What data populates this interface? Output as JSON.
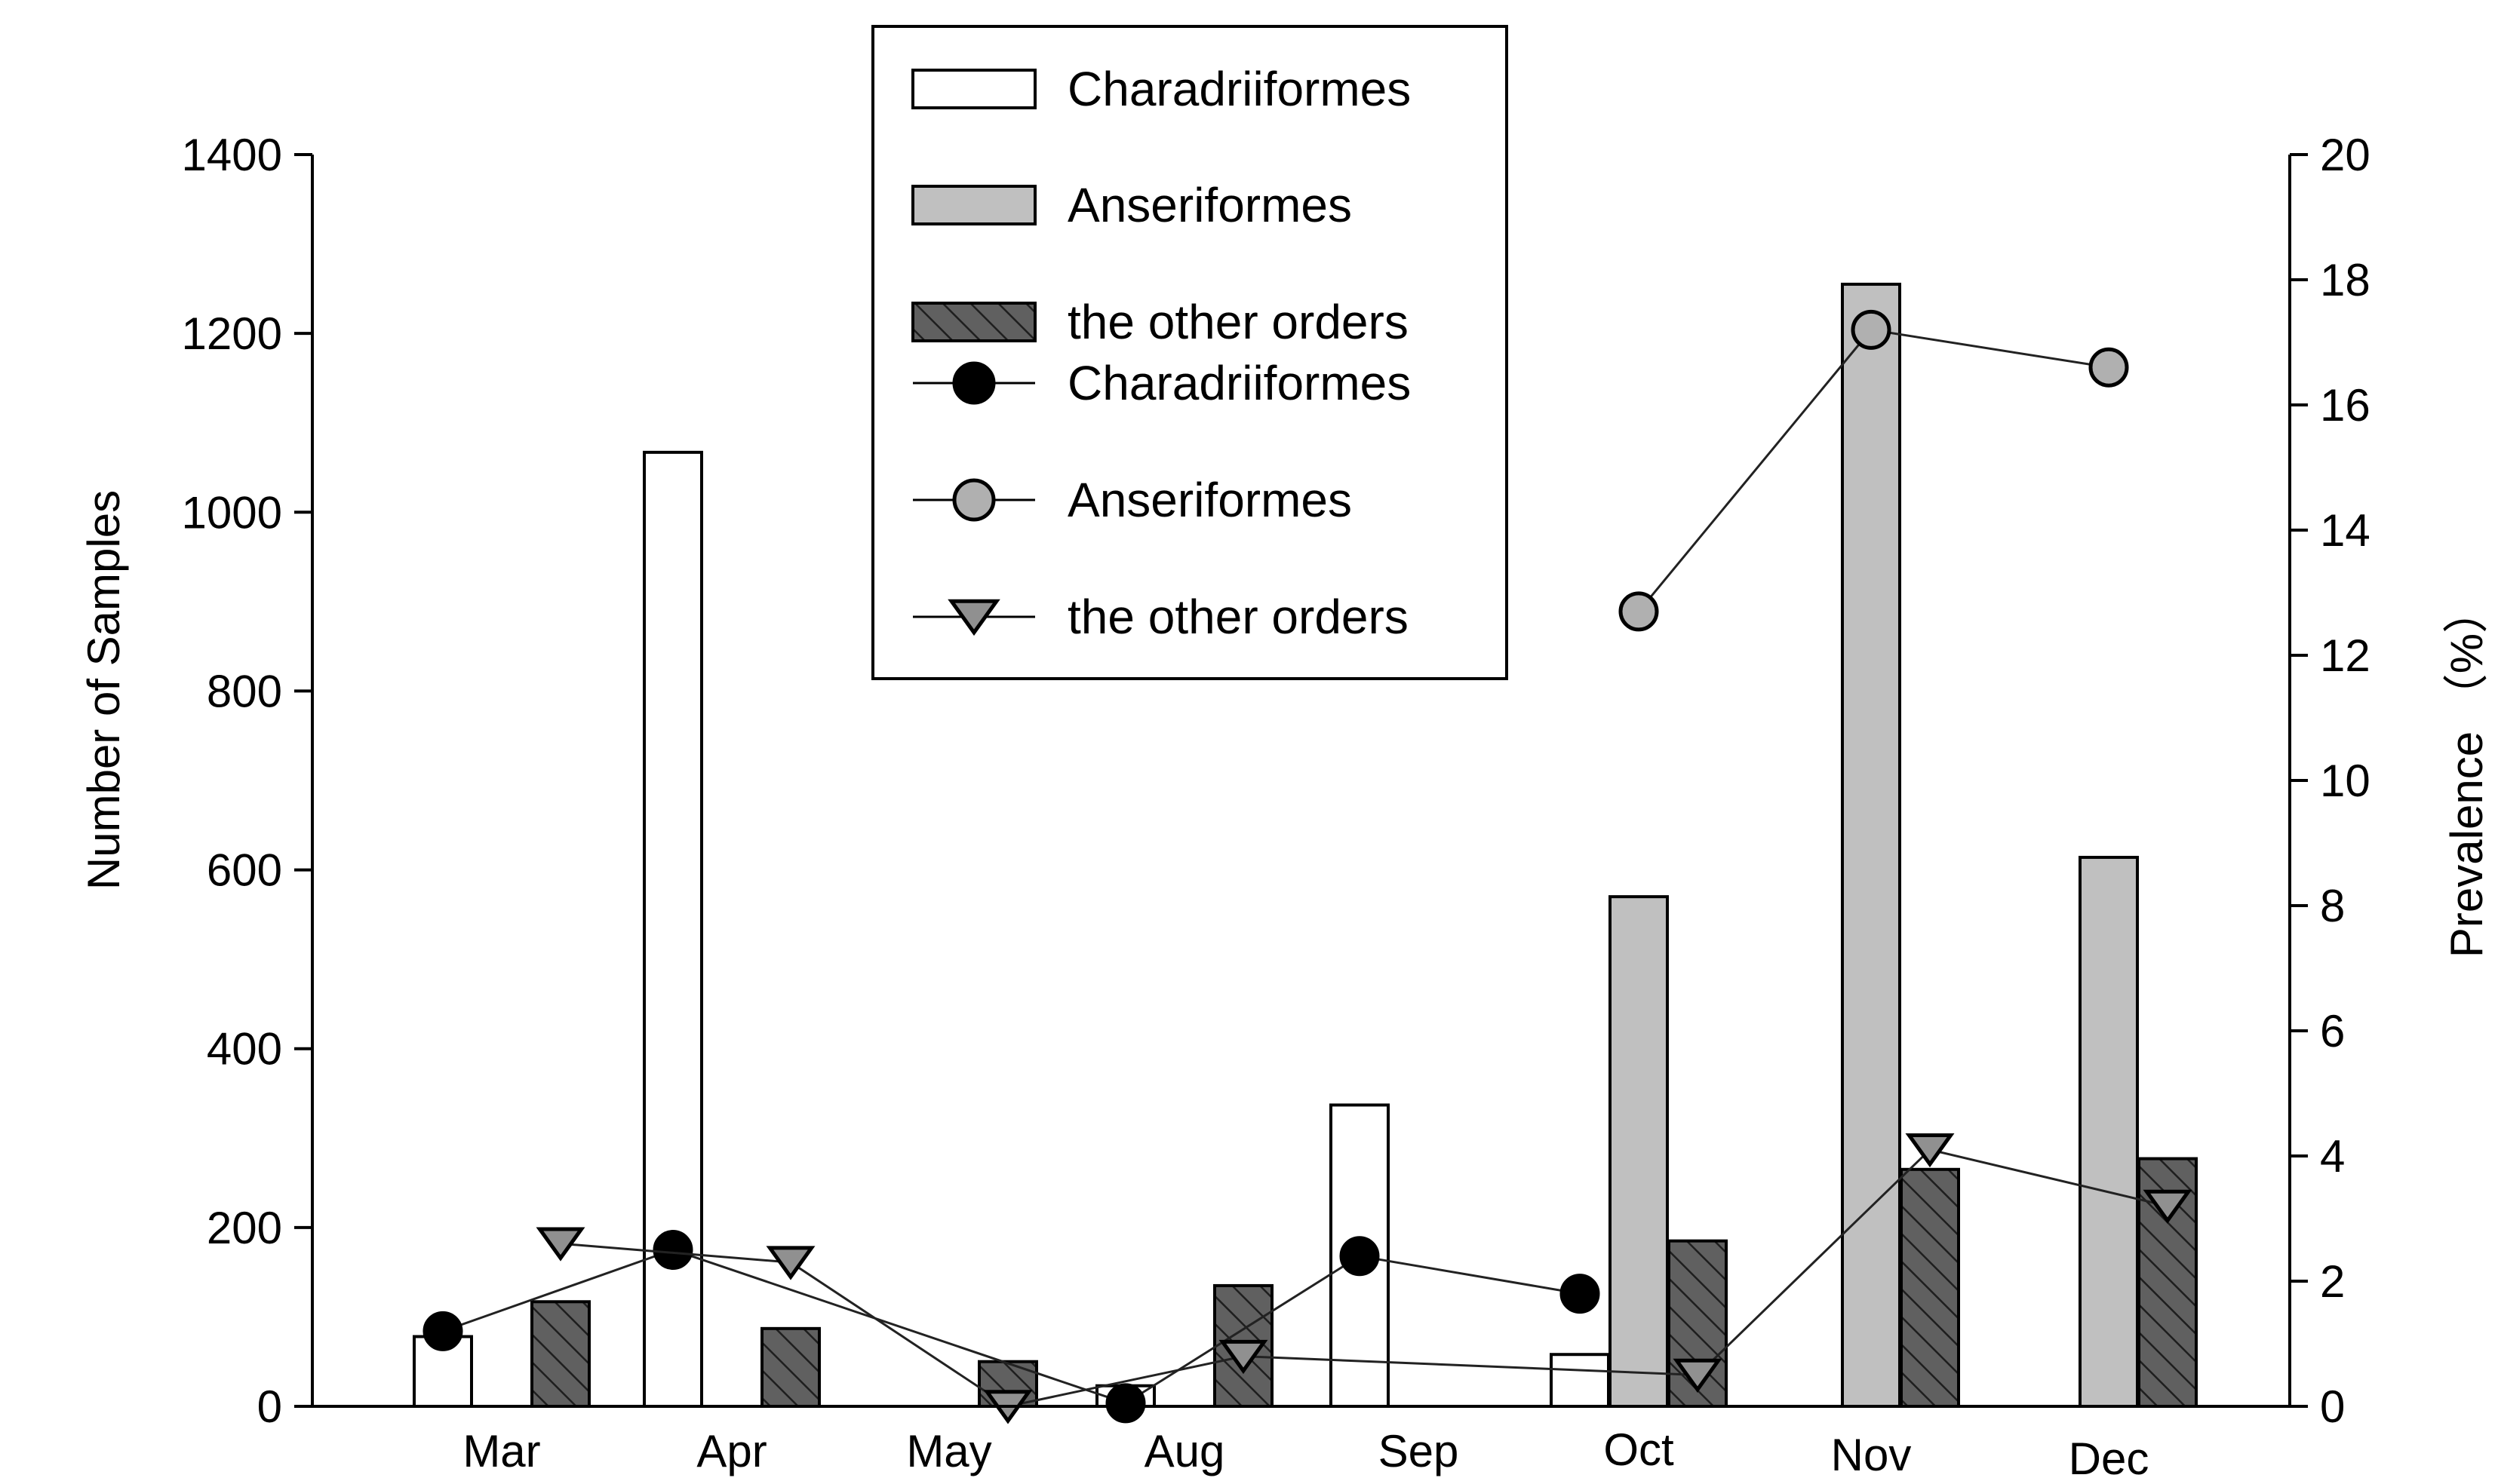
{
  "chart_data": {
    "type": "bar",
    "title": "",
    "categories": [
      "Mar",
      "Apr",
      "May",
      "Aug",
      "Sep",
      "Oct",
      "Nov",
      "Dec"
    ],
    "ylabel": "Number of  Samples",
    "y2label": "Prevalence （%）",
    "ylim": [
      0,
      1400
    ],
    "y2lim": [
      0,
      20
    ],
    "yticks": [
      "0",
      "200",
      "400",
      "600",
      "800",
      "1000",
      "1200",
      "1400"
    ],
    "y2ticks": [
      "0",
      "2",
      "4",
      "6",
      "8",
      "10",
      "12",
      "14",
      "16",
      "18",
      "20"
    ],
    "grid": false,
    "legend_position": "top-center",
    "bar_series": [
      {
        "name": "Charadriiformes",
        "style": "open",
        "fill": "#ffffff",
        "points": [
          {
            "cat": "Mar",
            "slot": "a",
            "value": 78
          },
          {
            "cat": "Apr",
            "slot": "a",
            "value": 1067
          },
          {
            "cat": "Aug",
            "slot": "a",
            "value": 23
          },
          {
            "cat": "Sep",
            "slot": "a",
            "value": 337
          },
          {
            "cat": "Oct",
            "slot": "a",
            "value": 58
          }
        ]
      },
      {
        "name": "Anseriformes",
        "style": "gray",
        "fill": "#c0c0c0",
        "points": [
          {
            "cat": "Oct",
            "slot": "b",
            "value": 570
          },
          {
            "cat": "Nov",
            "slot": "b",
            "value": 1255
          },
          {
            "cat": "Dec",
            "slot": "b",
            "value": 614
          }
        ]
      },
      {
        "name": "the other orders",
        "style": "hatched",
        "fill": "#606060",
        "points": [
          {
            "cat": "Mar",
            "slot": "c",
            "value": 117
          },
          {
            "cat": "Apr",
            "slot": "c",
            "value": 87
          },
          {
            "cat": "May",
            "slot": "c",
            "value": 50
          },
          {
            "cat": "Aug",
            "slot": "c",
            "value": 135
          },
          {
            "cat": "Oct",
            "slot": "c",
            "value": 185
          },
          {
            "cat": "Nov",
            "slot": "c",
            "value": 265
          },
          {
            "cat": "Dec",
            "slot": "c",
            "value": 277
          }
        ]
      }
    ],
    "line_series": [
      {
        "name": "Charadriiformes",
        "marker": "circle",
        "marker_fill": "#000000",
        "points": [
          {
            "cat": "Mar",
            "slot": "a",
            "value": 1.2
          },
          {
            "cat": "Apr",
            "slot": "a",
            "value": 2.5
          },
          {
            "cat": "Aug",
            "slot": "a",
            "value": 0.05
          },
          {
            "cat": "Sep",
            "slot": "a",
            "value": 2.4
          },
          {
            "cat": "Oct",
            "slot": "a",
            "value": 1.8
          }
        ]
      },
      {
        "name": "Anseriformes",
        "marker": "circle",
        "marker_fill": "#b0b0b0",
        "points": [
          {
            "cat": "Oct",
            "slot": "b",
            "value": 12.7
          },
          {
            "cat": "Nov",
            "slot": "b",
            "value": 17.2
          },
          {
            "cat": "Dec",
            "slot": "b",
            "value": 16.6
          }
        ]
      },
      {
        "name": "the other orders",
        "marker": "triangle-down",
        "marker_fill": "#909090",
        "points": [
          {
            "cat": "Mar",
            "slot": "c",
            "value": 2.6
          },
          {
            "cat": "Apr",
            "slot": "c",
            "value": 2.3
          },
          {
            "cat": "May",
            "slot": "c",
            "value": 0.0
          },
          {
            "cat": "Aug",
            "slot": "c",
            "value": 0.8
          },
          {
            "cat": "Oct",
            "slot": "c",
            "value": 0.5
          },
          {
            "cat": "Nov",
            "slot": "c",
            "value": 4.1
          },
          {
            "cat": "Dec",
            "slot": "c",
            "value": 3.2
          }
        ]
      }
    ],
    "legend": [
      {
        "label": "Charadriiformes",
        "kind": "bar",
        "style": "open"
      },
      {
        "label": "Anseriformes",
        "kind": "bar",
        "style": "gray"
      },
      {
        "label": "the other orders",
        "kind": "bar",
        "style": "hatched"
      },
      {
        "label": "Charadriiformes",
        "kind": "line",
        "marker": "circle",
        "marker_fill": "#000000"
      },
      {
        "label": "Anseriformes",
        "kind": "line",
        "marker": "circle",
        "marker_fill": "#b0b0b0"
      },
      {
        "label": "the other orders",
        "kind": "line",
        "marker": "triangle-down",
        "marker_fill": "#909090"
      }
    ]
  }
}
